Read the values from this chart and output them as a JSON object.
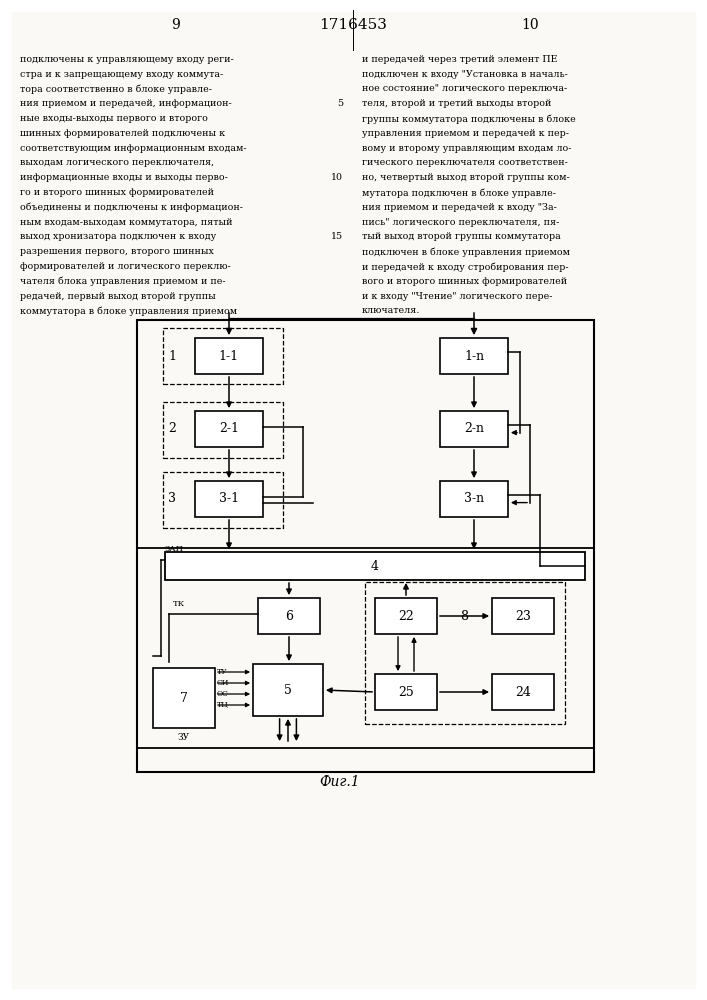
{
  "bg_color": "#f0ede8",
  "page_left": "9",
  "page_right": "10",
  "patent": "1716453",
  "fig_label": "Фиг.1",
  "left_lines": [
    "подключены к управляющему входу реги-",
    "стра и к запрещающему входу коммута-",
    "тора соответственно в блоке управле-",
    "ния приемом и передачей, информацион-",
    "ные входы-выходы первого и второго",
    "шинных формирователей подключены к",
    "соответствующим информационным входам-",
    "выходам логического переключателя,",
    "информационные входы и выходы перво-",
    "го и второго шинных формирователей",
    "объединены и подключены к информацион-",
    "ным входам-выходам коммутатора, пятый",
    "выход хронизатора подключен к входу",
    "разрешения первого, второго шинных",
    "формирователей и логического переклю-",
    "чателя блока управления приемом и пе-",
    "редачей, первый выход второй группы",
    "коммутатора в блоке управления приемом"
  ],
  "right_lines": [
    "и передачей через третий элемент ПЕ",
    "подключен к входу \"Установка в началь-",
    "ное состояние\" логического переключа-",
    "теля, второй и третий выходы второй",
    "группы коммутатора подключены в блоке",
    "управления приемом и передачей к пер-",
    "вому и второму управляющим входам ло-",
    "гического переключателя соответствен-",
    "но, четвертый выход второй группы ком-",
    "мутатора подключен в блоке управле-",
    "ния приемом и передачей к входу \"За-",
    "пись\" логического переключателя, пя-",
    "тый выход второй группы коммутатора",
    "подключен в блоке управления приемом",
    "и передачей к входу стробирования пер-",
    "вого и второго шинных формирователей",
    "и к входу \"Чтение\" логического пере-",
    "ключателя."
  ],
  "line_nums": {
    "4": "5",
    "9": "10",
    "13": "15"
  }
}
